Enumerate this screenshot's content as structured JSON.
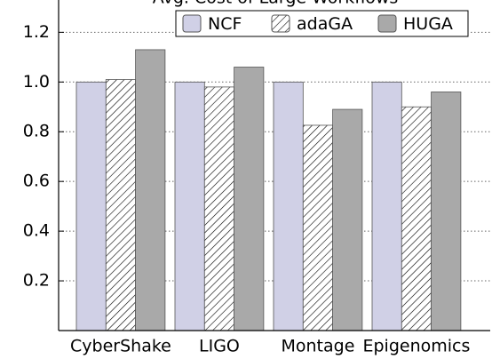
{
  "chart_data": {
    "type": "bar",
    "title": "Avg. Cost of Large Workflows",
    "categories": [
      "CyberShake",
      "LIGO",
      "Montage",
      "Epigenomics"
    ],
    "series": [
      {
        "name": "NCF",
        "color": "#d0d0e6",
        "values": [
          1.0,
          1.0,
          1.0,
          1.0
        ]
      },
      {
        "name": "adaGA",
        "color": "#ffffff",
        "hatch": "////",
        "values": [
          1.01,
          0.98,
          0.826,
          0.9
        ]
      },
      {
        "name": "HUGA",
        "color": "#a9a9a9",
        "values": [
          1.13,
          1.06,
          0.89,
          0.96
        ]
      }
    ],
    "ylim": [
      0,
      1.33
    ],
    "yticks": [
      0.2,
      0.4,
      0.6,
      0.8,
      {
        "value": 1,
        "label": "1.0"
      },
      1.2
    ],
    "grid": true,
    "legend": "top-right"
  }
}
